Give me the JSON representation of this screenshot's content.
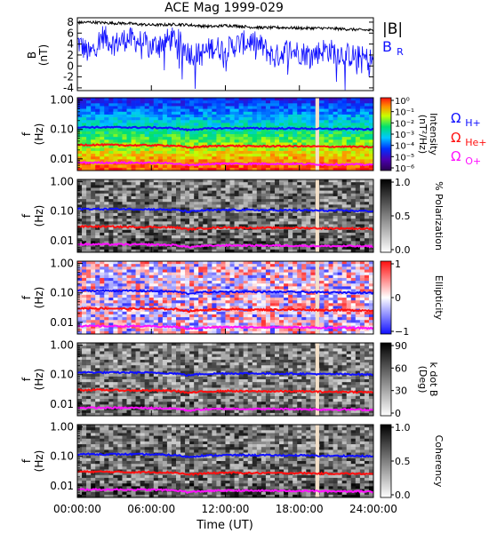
{
  "title": "ACE Mag 1999-029",
  "xaxis": {
    "label": "Time (UT)",
    "ticks": [
      "00:00:00",
      "06:00:00",
      "12:00:00",
      "18:00:00",
      "24:00:00"
    ],
    "range_hours": [
      0,
      24
    ]
  },
  "colors": {
    "blue": "#1010ff",
    "red": "#ff1010",
    "magenta": "#ff10ff",
    "gap": "#f4e0c8",
    "black": "#000000"
  },
  "chart_data": [
    {
      "type": "line",
      "panel": "B",
      "ylabel": "B",
      "yunit": "(nT)",
      "ylim": [
        -4.5,
        8.8
      ],
      "yticks": [
        "8",
        "6",
        "4",
        "2",
        "0",
        "-2",
        "-4"
      ],
      "x_hours": [
        0,
        1,
        2,
        3,
        4,
        5,
        6,
        7,
        8,
        9,
        10,
        11,
        12,
        13,
        14,
        15,
        16,
        17,
        18,
        19,
        20,
        21,
        22,
        23,
        24
      ],
      "series": [
        {
          "name": "|B|",
          "color": "#000000",
          "values": [
            7.9,
            8.0,
            7.9,
            7.8,
            7.8,
            7.6,
            7.5,
            7.5,
            7.6,
            7.5,
            7.3,
            7.2,
            7.4,
            7.3,
            7.1,
            7.0,
            7.0,
            7.0,
            6.9,
            6.9,
            6.9,
            6.8,
            6.7,
            6.6,
            6.5
          ]
        },
        {
          "name": "B_R",
          "color": "#1010ff",
          "values": [
            4.5,
            2.0,
            5.5,
            4.0,
            5.0,
            4.5,
            3.5,
            4.5,
            5.0,
            2.5,
            2.0,
            3.5,
            3.0,
            4.0,
            4.5,
            3.5,
            1.5,
            3.0,
            2.5,
            2.0,
            3.0,
            2.5,
            2.0,
            1.5,
            1.0
          ]
        }
      ]
    },
    {
      "type": "heatmap",
      "panel": "intensity",
      "ylabel": "f",
      "yunit": "(Hz)",
      "yscale": "log",
      "ylim": [
        0.004,
        1.2
      ],
      "yticks": [
        "1.00",
        "0.10",
        "0.01"
      ],
      "colorbar": {
        "label": "Intensity",
        "unit": "(nT²/Hz)",
        "ticks": [
          "10⁰",
          "10⁻¹",
          "10⁻²",
          "10⁻³",
          "10⁻⁴",
          "10⁻⁵",
          "10⁻⁶"
        ],
        "scale": "log",
        "range": [
          1e-06,
          1
        ]
      },
      "data_gap_hours": [
        19.3,
        19.6
      ]
    },
    {
      "type": "heatmap",
      "panel": "polarization",
      "ylabel": "f",
      "yunit": "(Hz)",
      "yscale": "log",
      "ylim": [
        0.004,
        1.2
      ],
      "yticks": [
        "1.00",
        "0.10",
        "0.01"
      ],
      "colorbar": {
        "label": "% Polarization",
        "ticks": [
          "1.0",
          "0.5",
          "0.0"
        ],
        "range": [
          0,
          1
        ]
      },
      "data_gap_hours": [
        19.3,
        19.6
      ]
    },
    {
      "type": "heatmap",
      "panel": "ellipticity",
      "ylabel": "f",
      "yunit": "(Hz)",
      "yscale": "log",
      "ylim": [
        0.004,
        1.2
      ],
      "yticks": [
        "1.00",
        "0.10",
        "0.01"
      ],
      "colorbar": {
        "label": "Ellipticity",
        "ticks": [
          "1",
          "0",
          "−1"
        ],
        "range": [
          -1,
          1
        ]
      },
      "data_gap_hours": [
        19.3,
        19.6
      ]
    },
    {
      "type": "heatmap",
      "panel": "kdotb",
      "ylabel": "f",
      "yunit": "(Hz)",
      "yscale": "log",
      "ylim": [
        0.004,
        1.2
      ],
      "yticks": [
        "1.00",
        "0.10",
        "0.01"
      ],
      "colorbar": {
        "label": "k dot B",
        "unit": "(Deg)",
        "ticks": [
          "90",
          "60",
          "30",
          "0"
        ],
        "range": [
          0,
          90
        ]
      },
      "data_gap_hours": [
        19.3,
        19.6
      ]
    },
    {
      "type": "heatmap",
      "panel": "coherency",
      "ylabel": "f",
      "yunit": "(Hz)",
      "yscale": "log",
      "ylim": [
        0.004,
        1.2
      ],
      "yticks": [
        "1.00",
        "0.10",
        "0.01"
      ],
      "colorbar": {
        "label": "Coherency",
        "ticks": [
          "1.0",
          "0.5",
          "0.0"
        ],
        "range": [
          0,
          1
        ]
      },
      "data_gap_hours": [
        19.3,
        19.6
      ]
    }
  ],
  "gyrofrequency_lines": {
    "x_hours": [
      0,
      2,
      4,
      6,
      8,
      9,
      10,
      12,
      14,
      16,
      18,
      20,
      22,
      24
    ],
    "series": [
      {
        "name": "Ω_H+",
        "label_main": "Ω",
        "label_sub": "H+",
        "color": "#1010ff",
        "values": [
          0.12,
          0.118,
          0.118,
          0.116,
          0.11,
          0.095,
          0.105,
          0.11,
          0.11,
          0.108,
          0.108,
          0.104,
          0.104,
          0.1
        ]
      },
      {
        "name": "Ω_He+",
        "label_main": "Ω",
        "label_sub": "He+",
        "color": "#ff1010",
        "values": [
          0.03,
          0.03,
          0.029,
          0.029,
          0.028,
          0.024,
          0.026,
          0.028,
          0.027,
          0.027,
          0.027,
          0.026,
          0.026,
          0.025
        ]
      },
      {
        "name": "Ω_O+",
        "label_main": "Ω",
        "label_sub": "O+",
        "color": "#ff10ff",
        "values": [
          0.0075,
          0.0074,
          0.0074,
          0.0073,
          0.007,
          0.006,
          0.0065,
          0.0069,
          0.0068,
          0.0068,
          0.0067,
          0.0065,
          0.0065,
          0.0063
        ]
      }
    ]
  },
  "legend_b": {
    "line1": "|B|",
    "line2_main": "B",
    "line2_sub": "R"
  }
}
